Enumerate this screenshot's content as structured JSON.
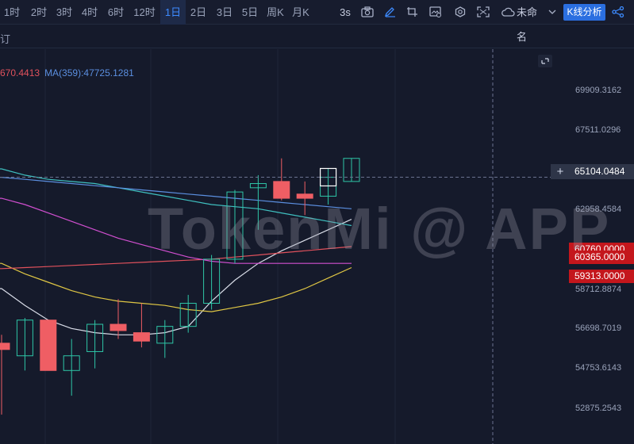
{
  "toolbar": {
    "timeframes": [
      {
        "label": "1时",
        "active": false
      },
      {
        "label": "2时",
        "active": false
      },
      {
        "label": "3时",
        "active": false
      },
      {
        "label": "4时",
        "active": false
      },
      {
        "label": "6时",
        "active": false
      },
      {
        "label": "12时",
        "active": false
      },
      {
        "label": "1日",
        "active": true
      },
      {
        "label": "2日",
        "active": false
      },
      {
        "label": "3日",
        "active": false
      },
      {
        "label": "5日",
        "active": false
      },
      {
        "label": "周K",
        "active": false
      },
      {
        "label": "月K",
        "active": false
      }
    ],
    "refresh_label": "3s",
    "layout_name": "未命名",
    "kline_analysis_label": "K线分析",
    "icons": [
      "camera-icon",
      "pen-icon",
      "crop-icon",
      "image-settings-icon",
      "settings-icon",
      "fullscreen-icon",
      "cloud-icon",
      "chevron-down-icon",
      "share-icon"
    ]
  },
  "subbar": {
    "text": "订"
  },
  "legend": {
    "ma1": "670.4413",
    "ma2": "MA(359):47725.1281"
  },
  "price_axis": {
    "labels": [
      "69909.3162",
      "67511.0296",
      "62958.4584",
      "58712.8874",
      "56698.7019",
      "54753.6143",
      "52875.2543"
    ],
    "crosshair_price": "65104.0484",
    "tags": [
      {
        "value": "60760.0000",
        "color": "#c4161c"
      },
      {
        "value": "60365.0000",
        "color": "#c4161c"
      },
      {
        "value": "59313.0000",
        "color": "#c4161c"
      }
    ]
  },
  "watermark": "TokenMi @ APP",
  "colors": {
    "up": "#2ec6a7",
    "down": "#ef5e64",
    "background": "#151a2b",
    "accent": "#3d8bff"
  },
  "chart_data": {
    "type": "candlestick",
    "candles": [
      {
        "o": 57200,
        "h": 57600,
        "l": 53800,
        "c": 56900
      },
      {
        "o": 56600,
        "h": 58400,
        "l": 55900,
        "c": 58300
      },
      {
        "o": 58300,
        "h": 58300,
        "l": 55900,
        "c": 55900
      },
      {
        "o": 55900,
        "h": 57400,
        "l": 54700,
        "c": 56600
      },
      {
        "o": 56800,
        "h": 58300,
        "l": 56000,
        "c": 58100
      },
      {
        "o": 58100,
        "h": 59300,
        "l": 57400,
        "c": 57800
      },
      {
        "o": 57700,
        "h": 59100,
        "l": 57000,
        "c": 57300
      },
      {
        "o": 57200,
        "h": 58300,
        "l": 56500,
        "c": 58000
      },
      {
        "o": 58000,
        "h": 59500,
        "l": 57700,
        "c": 59100
      },
      {
        "o": 59100,
        "h": 61400,
        "l": 58800,
        "c": 61200
      },
      {
        "o": 61200,
        "h": 64500,
        "l": 61000,
        "c": 64400
      },
      {
        "o": 64600,
        "h": 65200,
        "l": 62600,
        "c": 64800
      },
      {
        "o": 64900,
        "h": 66000,
        "l": 64000,
        "c": 64100
      },
      {
        "o": 64300,
        "h": 64900,
        "l": 63300,
        "c": 64100
      },
      {
        "o": 64200,
        "h": 65500,
        "l": 63800,
        "c": 65100
      },
      {
        "o": 64900,
        "h": 66000,
        "l": 64900,
        "c": 66000
      }
    ],
    "ma_lines": [
      {
        "color": "#d9dde8",
        "values": [
          59800,
          59000,
          58300,
          57900,
          57700,
          57600,
          57600,
          57700,
          58000,
          59200,
          60200,
          61000,
          61600,
          62100,
          62600,
          63100
        ]
      },
      {
        "color": "#e0c744",
        "values": [
          61000,
          60500,
          60100,
          59700,
          59400,
          59200,
          59100,
          59000,
          58800,
          58700,
          58900,
          59100,
          59400,
          59800,
          60300,
          60800
        ]
      },
      {
        "color": "#e0515c",
        "values": [
          60750,
          60800,
          60850,
          60900,
          60950,
          61000,
          61050,
          61100,
          61150,
          61200,
          61300,
          61400,
          61500,
          61600,
          61700,
          61800
        ]
      },
      {
        "color": "#d14fd0",
        "values": [
          64100,
          63800,
          63400,
          63000,
          62600,
          62200,
          61900,
          61600,
          61300,
          61100,
          61000,
          61000,
          61000,
          61000,
          61000,
          61000
        ]
      },
      {
        "color": "#3fc0c0",
        "values": [
          65500,
          65200,
          65000,
          64900,
          64800,
          64600,
          64400,
          64200,
          64000,
          63800,
          63700,
          63600,
          63400,
          63200,
          63000,
          62800
        ]
      },
      {
        "color": "#5b8fe0",
        "values": [
          65100,
          65000,
          64900,
          64800,
          64700,
          64600,
          64500,
          64400,
          64300,
          64200,
          64100,
          64000,
          63900,
          63800,
          63700,
          63600
        ]
      }
    ],
    "ylim": [
      52400,
      71200
    ],
    "crosshair": {
      "price": 65104.0484,
      "candle_index": 14
    }
  }
}
